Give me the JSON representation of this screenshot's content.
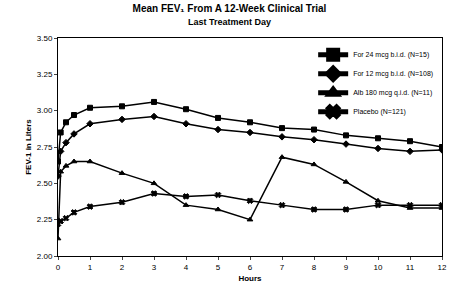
{
  "chart_data": {
    "type": "line",
    "title": "Mean FEV₁ From A 12-Week Clinical Trial",
    "subtitle": "Last Treatment Day",
    "x_label": "Hours",
    "y_label": "FEV-1 in Liters",
    "x": [
      0,
      0.083,
      0.25,
      0.5,
      1,
      2,
      3,
      4,
      5,
      6,
      7,
      8,
      9,
      10,
      11,
      12
    ],
    "series": [
      {
        "name": "For 24 mcg b.i.d. (N=15)",
        "color": "#000000",
        "marker": "square",
        "values": [
          2.65,
          2.85,
          2.92,
          2.97,
          3.02,
          3.03,
          3.06,
          3.01,
          2.95,
          2.92,
          2.88,
          2.87,
          2.83,
          2.81,
          2.79,
          2.75
        ]
      },
      {
        "name": "For 12 mcg b.i.d. (N=108)",
        "color": "#000000",
        "marker": "diamond",
        "values": [
          2.55,
          2.72,
          2.78,
          2.84,
          2.91,
          2.94,
          2.96,
          2.91,
          2.87,
          2.85,
          2.82,
          2.8,
          2.77,
          2.74,
          2.72,
          2.73
        ]
      },
      {
        "name": "Alb 180 mcg q.i.d. (N=11)",
        "color": "#000000",
        "marker": "triangle-up",
        "values": [
          2.12,
          2.58,
          2.62,
          2.65,
          2.65,
          2.57,
          2.5,
          2.35,
          2.32,
          2.25,
          2.68,
          2.63,
          2.51,
          2.38,
          2.33,
          2.33
        ]
      },
      {
        "name": "Placebo (N=121)",
        "color": "#000000",
        "marker": "x",
        "values": [
          2.22,
          2.24,
          2.26,
          2.3,
          2.34,
          2.37,
          2.43,
          2.41,
          2.42,
          2.38,
          2.35,
          2.32,
          2.32,
          2.35,
          2.35,
          2.35
        ]
      }
    ],
    "xlim": [
      0,
      12
    ],
    "xticks": [
      0,
      1,
      2,
      3,
      4,
      5,
      6,
      7,
      8,
      9,
      10,
      11,
      12
    ],
    "ylim": [
      2.0,
      3.5
    ],
    "yticks": [
      {
        "value": 2.0,
        "label": "2.00"
      },
      2.25,
      {
        "value": 2.5,
        "label": "2.50"
      },
      2.75,
      {
        "value": 3.0,
        "label": "3.00"
      },
      3.25,
      {
        "value": 3.5,
        "label": "3.50"
      }
    ],
    "grid": false,
    "legend": "top-right"
  }
}
